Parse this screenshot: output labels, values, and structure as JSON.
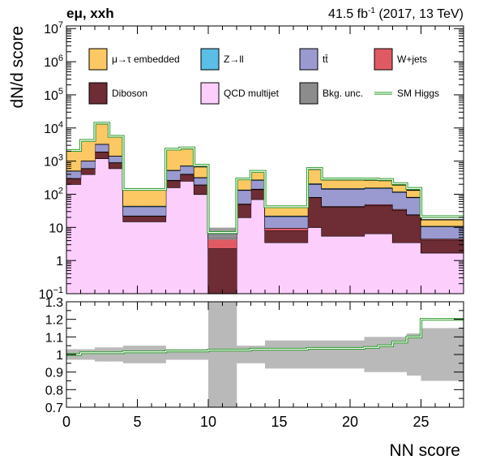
{
  "header": {
    "channel": "eμ, xxh",
    "lumi": "41.5 fb",
    "lumi_sup": "-1",
    "lumi_tail": " (2017, 13 TeV)"
  },
  "chart_data": [
    {
      "type": "stacked-step-histogram",
      "xlabel": "NN score",
      "ylabel": "dN/d score",
      "xlim": [
        0,
        28
      ],
      "ylim": [
        0.1,
        12000000
      ],
      "log_y": true,
      "grid": false,
      "legend_position": "top",
      "x_edges": [
        0,
        1,
        2,
        3,
        4,
        5,
        6,
        7,
        8,
        9,
        10,
        11,
        12,
        13,
        14,
        15,
        16,
        17,
        18,
        19,
        20,
        21,
        22,
        23,
        24,
        25,
        26,
        27,
        28
      ],
      "x_ticks": [
        0,
        5,
        10,
        15,
        20,
        25
      ],
      "y_ticks": [
        {
          "value": 0.1,
          "base": "10",
          "exp": "−1"
        },
        {
          "value": 1,
          "base": "1",
          "exp": ""
        },
        {
          "value": 10,
          "base": "10",
          "exp": ""
        },
        {
          "value": 100,
          "base": "10",
          "exp": "2"
        },
        {
          "value": 1000,
          "base": "10",
          "exp": "3"
        },
        {
          "value": 10000,
          "base": "10",
          "exp": "4"
        },
        {
          "value": 100000,
          "base": "10",
          "exp": "5"
        },
        {
          "value": 1000000,
          "base": "10",
          "exp": "6"
        },
        {
          "value": 10000000,
          "base": "10",
          "exp": "7"
        }
      ],
      "stack_order": [
        "QCD multijet",
        "Diboson",
        "W+jets",
        "tt̄",
        "Z→ll",
        "μ→τ embedded"
      ],
      "series": [
        {
          "name": "QCD multijet",
          "color": "#fccefc",
          "values": [
            200,
            400,
            1200,
            600,
            15,
            15,
            15,
            160,
            250,
            100,
            0.1,
            0.1,
            20,
            70,
            3.5,
            3.5,
            3.5,
            10,
            5.5,
            5.5,
            5.5,
            6.5,
            6.5,
            3.5,
            3.5,
            1.7,
            1.7,
            1.7
          ]
        },
        {
          "name": "Diboson",
          "color": "#6e2c34",
          "values": [
            100,
            200,
            700,
            300,
            7,
            7,
            7,
            100,
            150,
            90,
            2.2,
            2.2,
            30,
            70,
            4.5,
            4.5,
            4.5,
            70,
            36,
            36,
            36,
            40,
            40,
            30,
            20,
            2.5,
            2.5,
            2.5
          ]
        },
        {
          "name": "W+jets",
          "color": "#e05a64",
          "values": [
            5,
            10,
            30,
            15,
            0.5,
            0.5,
            0.5,
            8,
            10,
            5,
            2.5,
            2.5,
            2,
            5,
            1.5,
            1.5,
            1.5,
            2,
            2,
            2,
            2,
            3,
            3,
            2,
            1,
            0.3,
            0.3,
            0.3
          ]
        },
        {
          "name": "tt̄",
          "color": "#9a9ad0",
          "values": [
            200,
            400,
            1300,
            500,
            20,
            20,
            20,
            250,
            300,
            120,
            1.5,
            1.5,
            80,
            120,
            12,
            12,
            12,
            120,
            100,
            100,
            100,
            100,
            100,
            80,
            55,
            6,
            6,
            6
          ]
        },
        {
          "name": "Z→ll",
          "color": "#5abee6",
          "values": [
            10,
            20,
            60,
            30,
            2,
            2,
            2,
            20,
            25,
            10,
            0.2,
            0.2,
            5,
            10,
            1,
            1,
            1,
            10,
            8,
            8,
            8,
            8,
            8,
            5,
            3,
            0.5,
            0.5,
            0.5
          ]
        },
        {
          "name": "μ→τ embedded",
          "color": "#fcc864",
          "values": [
            1500,
            3000,
            10000,
            4000,
            90,
            90,
            90,
            1700,
            1600,
            350,
            0.5,
            0.5,
            140,
            200,
            18,
            18,
            18,
            350,
            120,
            120,
            120,
            110,
            100,
            70,
            50,
            6,
            6,
            6
          ]
        }
      ],
      "bkg_unc_series": {
        "name": "Bkg. unc.",
        "color": "#8c8c8c"
      },
      "overlay": {
        "name": "SM Higgs",
        "color": "#2a9a2a",
        "values": [
          2100,
          4200,
          14000,
          5600,
          140,
          140,
          140,
          2300,
          2500,
          750,
          7,
          7,
          290,
          490,
          42,
          42,
          42,
          600,
          290,
          290,
          290,
          290,
          280,
          210,
          150,
          21,
          21,
          21
        ]
      },
      "legend": [
        {
          "label": "μ→τ embedded",
          "color": "#fcc864",
          "kind": "box"
        },
        {
          "label": "Z→ll",
          "color": "#5abee6",
          "kind": "box"
        },
        {
          "label": "tt̄",
          "color": "#9a9ad0",
          "kind": "box"
        },
        {
          "label": "W+jets",
          "color": "#e05a64",
          "kind": "box"
        },
        {
          "label": "Diboson",
          "color": "#6e2c34",
          "kind": "box"
        },
        {
          "label": "QCD multijet",
          "color": "#fccefc",
          "kind": "box"
        },
        {
          "label": "Bkg. unc.",
          "color": "#8c8c8c",
          "kind": "box"
        },
        {
          "label": "SM Higgs",
          "color": "#2a9a2a",
          "kind": "line"
        }
      ]
    },
    {
      "type": "ratio-step",
      "xlim": [
        0,
        28
      ],
      "ylim": [
        0.7,
        1.3
      ],
      "x_ticks": [
        0,
        5,
        10,
        15,
        20,
        25
      ],
      "y_ticks": [
        0.7,
        0.8,
        0.9,
        1.0,
        1.1,
        1.2,
        1.3
      ],
      "y_tick_labels": [
        "0.7",
        "0.8",
        "0.9",
        "1",
        "1.1",
        "1.2",
        "1.3"
      ],
      "unc_band_color": "#b9b9b9",
      "unc_half_width": [
        0.03,
        0.03,
        0.04,
        0.04,
        0.05,
        0.05,
        0.05,
        0.03,
        0.03,
        0.03,
        0.4,
        0.4,
        0.05,
        0.05,
        0.08,
        0.08,
        0.08,
        0.08,
        0.08,
        0.08,
        0.08,
        0.1,
        0.1,
        0.1,
        0.12,
        0.15,
        0.15,
        0.15
      ],
      "higgs_ratio_color": "#2a9a2a",
      "higgs_ratio": [
        1.0,
        1.01,
        1.01,
        1.01,
        1.015,
        1.015,
        1.015,
        1.02,
        1.02,
        1.02,
        1.025,
        1.025,
        1.025,
        1.03,
        1.03,
        1.03,
        1.03,
        1.035,
        1.035,
        1.035,
        1.035,
        1.04,
        1.05,
        1.07,
        1.1,
        1.2,
        1.2,
        1.2
      ]
    }
  ]
}
